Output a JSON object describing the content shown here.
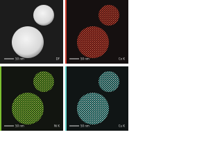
{
  "panels": [
    {
      "label": "DF",
      "scale_bar": "50 nm"
    },
    {
      "label": "Co K",
      "scale_bar": "50 nm"
    },
    {
      "label": "Ni K",
      "scale_bar": "50 nm"
    },
    {
      "label": "Cu K",
      "scale_bar": "50 nm"
    }
  ]
}
